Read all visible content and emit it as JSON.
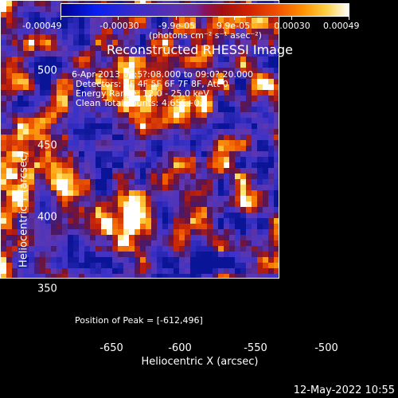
{
  "colorbar": {
    "ticks": [
      "-0.00049",
      "-0.00030",
      "-9.9e-05",
      "9.9e-05",
      "0.00030",
      "0.00049"
    ],
    "unit": "(photons cm⁻² s⁻¹ asec⁻²)"
  },
  "title": "Reconstructed RHESSI Image",
  "info": {
    "time": "6-Apr-2013 08:5?:08.000 to 09:0?:20.000",
    "detectors": "Detectors: 3F 4F 5F 6F 7F 8F, Att 0",
    "energy": "Energy Range: 12.0 - 25.0 keV",
    "method": "Clean    Total counts: 4.65E+03",
    "peak": "Position of Peak = [-612,496]"
  },
  "axes": {
    "xlabel": "Heliocentric X (arcsec)",
    "ylabel": "Heliocentric Y (arcsec)",
    "xticks": [
      "-650",
      "-600",
      "-550",
      "-500"
    ],
    "yticks": [
      "500",
      "450",
      "400",
      "350"
    ]
  },
  "timestamp": "12-May-2022 10:55",
  "chart_data": {
    "type": "heatmap",
    "title": "Reconstructed RHESSI Image",
    "xlabel": "Heliocentric X (arcsec)",
    "ylabel": "Heliocentric Y (arcsec)",
    "xlim": [
      -676,
      -488
    ],
    "ylim": [
      315,
      506
    ],
    "colorbar_range": [
      -0.00049,
      0.00049
    ],
    "colormap": "blue-purple-red-yellow-white",
    "peak_position": [
      -612,
      496
    ]
  }
}
